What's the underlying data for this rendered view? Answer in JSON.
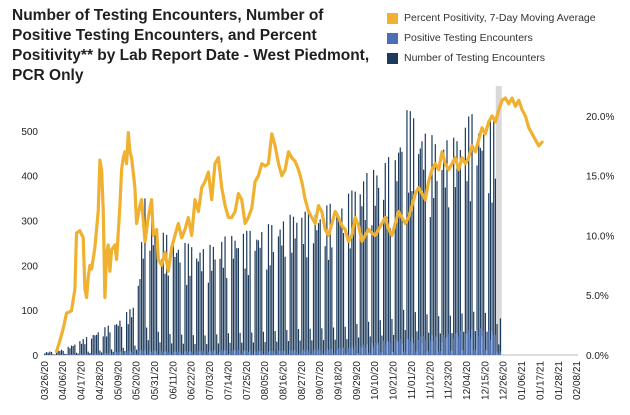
{
  "chart_data": {
    "type": "bar+line",
    "title": "Number of Testing Encounters, Number of Positive Testing Encounters, and Percent Positivity** by Lab Report Date - West Piedmont, PCR Only",
    "legend": [
      {
        "label": "Percent Positivity, 7-Day Moving Average",
        "color": "#f0b030",
        "kind": "line"
      },
      {
        "label": "Positive Testing Encounters",
        "color": "#4a6fb5",
        "kind": "bar"
      },
      {
        "label": "Number of Testing Encounters",
        "color": "#1c3a5c",
        "kind": "bar"
      }
    ],
    "x_ticks": [
      "03/26/20",
      "04/06/20",
      "04/17/20",
      "04/28/20",
      "05/09/20",
      "05/20/20",
      "05/31/20",
      "06/11/20",
      "06/22/20",
      "07/03/20",
      "07/14/20",
      "07/25/20",
      "08/05/20",
      "08/16/20",
      "08/27/20",
      "09/07/20",
      "09/18/20",
      "09/29/20",
      "10/10/20",
      "10/21/20",
      "11/01/20",
      "11/12/20",
      "11/23/20",
      "12/04/20",
      "12/15/20",
      "12/26/20",
      "01/06/21",
      "01/17/21",
      "01/28/21",
      "02/08/21"
    ],
    "y_left": {
      "ticks": [
        "0",
        "100",
        "200",
        "300",
        "400",
        "500"
      ],
      "min": 0,
      "max": 600
    },
    "y_right": {
      "ticks": [
        "0.0%",
        "5.0%",
        "10.0%",
        "15.0%",
        "20.0%"
      ],
      "min": 0,
      "max": 22.5
    },
    "encounters_env": [
      [
        0,
        6
      ],
      [
        10,
        12
      ],
      [
        15,
        20
      ],
      [
        25,
        40
      ],
      [
        35,
        60
      ],
      [
        45,
        80
      ],
      [
        55,
        120
      ],
      [
        60,
        350
      ],
      [
        65,
        300
      ],
      [
        75,
        260
      ],
      [
        85,
        250
      ],
      [
        95,
        240
      ],
      [
        110,
        270
      ],
      [
        125,
        280
      ],
      [
        140,
        300
      ],
      [
        150,
        320
      ],
      [
        165,
        330
      ],
      [
        180,
        350
      ],
      [
        190,
        400
      ],
      [
        200,
        430
      ],
      [
        210,
        450
      ],
      [
        215,
        560
      ],
      [
        225,
        520
      ],
      [
        235,
        480
      ],
      [
        245,
        490
      ],
      [
        255,
        540
      ],
      [
        265,
        520
      ],
      [
        270,
        530
      ],
      [
        273,
        90
      ]
    ],
    "positive_env": [
      [
        0,
        0
      ],
      [
        20,
        2
      ],
      [
        35,
        4
      ],
      [
        45,
        8
      ],
      [
        55,
        12
      ],
      [
        60,
        12
      ],
      [
        75,
        8
      ],
      [
        90,
        10
      ],
      [
        110,
        12
      ],
      [
        130,
        10
      ],
      [
        150,
        12
      ],
      [
        170,
        14
      ],
      [
        190,
        22
      ],
      [
        200,
        30
      ],
      [
        210,
        36
      ],
      [
        225,
        42
      ],
      [
        240,
        46
      ],
      [
        250,
        56
      ],
      [
        260,
        60
      ],
      [
        270,
        52
      ],
      [
        273,
        8
      ]
    ],
    "positivity": [
      [
        7,
        0.3
      ],
      [
        9,
        1.2
      ],
      [
        11,
        2.2
      ],
      [
        13,
        3.5
      ],
      [
        16,
        3.7
      ],
      [
        18,
        5.5
      ],
      [
        19,
        10.2
      ],
      [
        21,
        10.4
      ],
      [
        23,
        9.8
      ],
      [
        24,
        5.5
      ],
      [
        25,
        4.8
      ],
      [
        26,
        6.5
      ],
      [
        27,
        7.5
      ],
      [
        28,
        7.2
      ],
      [
        30,
        9.0
      ],
      [
        32,
        12.0
      ],
      [
        33,
        16.3
      ],
      [
        34,
        15.5
      ],
      [
        35,
        12.2
      ],
      [
        36,
        4.8
      ],
      [
        37,
        8.5
      ],
      [
        38,
        9.2
      ],
      [
        39,
        7.0
      ],
      [
        40,
        8.8
      ],
      [
        42,
        9.2
      ],
      [
        43,
        8.0
      ],
      [
        45,
        12.5
      ],
      [
        46,
        15.5
      ],
      [
        47,
        16.5
      ],
      [
        48,
        17.0
      ],
      [
        49,
        16.0
      ],
      [
        50,
        18.6
      ],
      [
        51,
        17.0
      ],
      [
        52,
        16.5
      ],
      [
        54,
        14.0
      ],
      [
        55,
        11.0
      ],
      [
        57,
        12.5
      ],
      [
        58,
        13.0
      ],
      [
        60,
        9.5
      ],
      [
        62,
        11.5
      ],
      [
        64,
        13.0
      ],
      [
        65,
        10.0
      ],
      [
        67,
        10.5
      ],
      [
        68,
        8.0
      ],
      [
        70,
        7.5
      ],
      [
        72,
        8.6
      ],
      [
        74,
        7.0
      ],
      [
        76,
        9.0
      ],
      [
        78,
        10.0
      ],
      [
        80,
        11.0
      ],
      [
        82,
        9.8
      ],
      [
        84,
        10.5
      ],
      [
        86,
        11.5
      ],
      [
        88,
        10.0
      ],
      [
        90,
        13.0
      ],
      [
        92,
        12.0
      ],
      [
        94,
        14.0
      ],
      [
        96,
        14.5
      ],
      [
        98,
        15.3
      ],
      [
        100,
        13.0
      ],
      [
        102,
        16.0
      ],
      [
        104,
        16.5
      ],
      [
        106,
        14.0
      ],
      [
        108,
        12.5
      ],
      [
        110,
        11.5
      ],
      [
        112,
        11.5
      ],
      [
        114,
        12.0
      ],
      [
        116,
        13.5
      ],
      [
        118,
        13.0
      ],
      [
        120,
        11.0
      ],
      [
        122,
        11.5
      ],
      [
        124,
        12.3
      ],
      [
        126,
        14.5
      ],
      [
        128,
        15.0
      ],
      [
        130,
        16.0
      ],
      [
        132,
        15.8
      ],
      [
        134,
        16.0
      ],
      [
        136,
        18.5
      ],
      [
        138,
        17.5
      ],
      [
        140,
        16.0
      ],
      [
        142,
        15.0
      ],
      [
        144,
        15.5
      ],
      [
        146,
        17.0
      ],
      [
        148,
        16.5
      ],
      [
        150,
        16.2
      ],
      [
        152,
        15.5
      ],
      [
        154,
        14.5
      ],
      [
        156,
        13.0
      ],
      [
        158,
        12.0
      ],
      [
        160,
        11.5
      ],
      [
        162,
        11.0
      ],
      [
        164,
        12.5
      ],
      [
        166,
        12.0
      ],
      [
        168,
        10.5
      ],
      [
        170,
        10.0
      ],
      [
        172,
        11.0
      ],
      [
        174,
        12.0
      ],
      [
        176,
        11.5
      ],
      [
        178,
        10.8
      ],
      [
        180,
        10.5
      ],
      [
        182,
        9.5
      ],
      [
        184,
        10.0
      ],
      [
        186,
        11.5
      ],
      [
        188,
        10.8
      ],
      [
        190,
        9.5
      ],
      [
        192,
        10.0
      ],
      [
        194,
        10.5
      ],
      [
        196,
        10.2
      ],
      [
        198,
        10.0
      ],
      [
        200,
        10.5
      ],
      [
        202,
        11.0
      ],
      [
        204,
        11.5
      ],
      [
        206,
        10.5
      ],
      [
        208,
        10.0
      ],
      [
        210,
        11.0
      ],
      [
        212,
        12.0
      ],
      [
        214,
        11.5
      ],
      [
        216,
        11.0
      ],
      [
        218,
        11.5
      ],
      [
        220,
        12.5
      ],
      [
        222,
        13.5
      ],
      [
        224,
        14.0
      ],
      [
        226,
        13.5
      ],
      [
        228,
        13.0
      ],
      [
        230,
        14.5
      ],
      [
        232,
        15.5
      ],
      [
        234,
        16.0
      ],
      [
        236,
        15.5
      ],
      [
        238,
        17.0
      ],
      [
        240,
        16.0
      ],
      [
        242,
        15.5
      ],
      [
        244,
        16.0
      ],
      [
        246,
        16.5
      ],
      [
        248,
        15.5
      ],
      [
        250,
        16.5
      ],
      [
        252,
        16.0
      ],
      [
        254,
        16.5
      ],
      [
        256,
        17.5
      ],
      [
        258,
        17.0
      ],
      [
        260,
        18.0
      ],
      [
        262,
        19.0
      ],
      [
        264,
        18.5
      ],
      [
        266,
        19.5
      ],
      [
        268,
        20.0
      ],
      [
        270,
        19.5
      ],
      [
        272,
        20.5
      ],
      [
        274,
        21.3
      ],
      [
        276,
        21.5
      ],
      [
        278,
        21.0
      ],
      [
        280,
        21.5
      ],
      [
        282,
        20.8
      ],
      [
        284,
        21.3
      ],
      [
        286,
        20.5
      ],
      [
        288,
        20.0
      ],
      [
        290,
        19.0
      ],
      [
        292,
        18.5
      ],
      [
        294,
        18.0
      ],
      [
        296,
        17.5
      ],
      [
        298,
        17.8
      ]
    ]
  }
}
